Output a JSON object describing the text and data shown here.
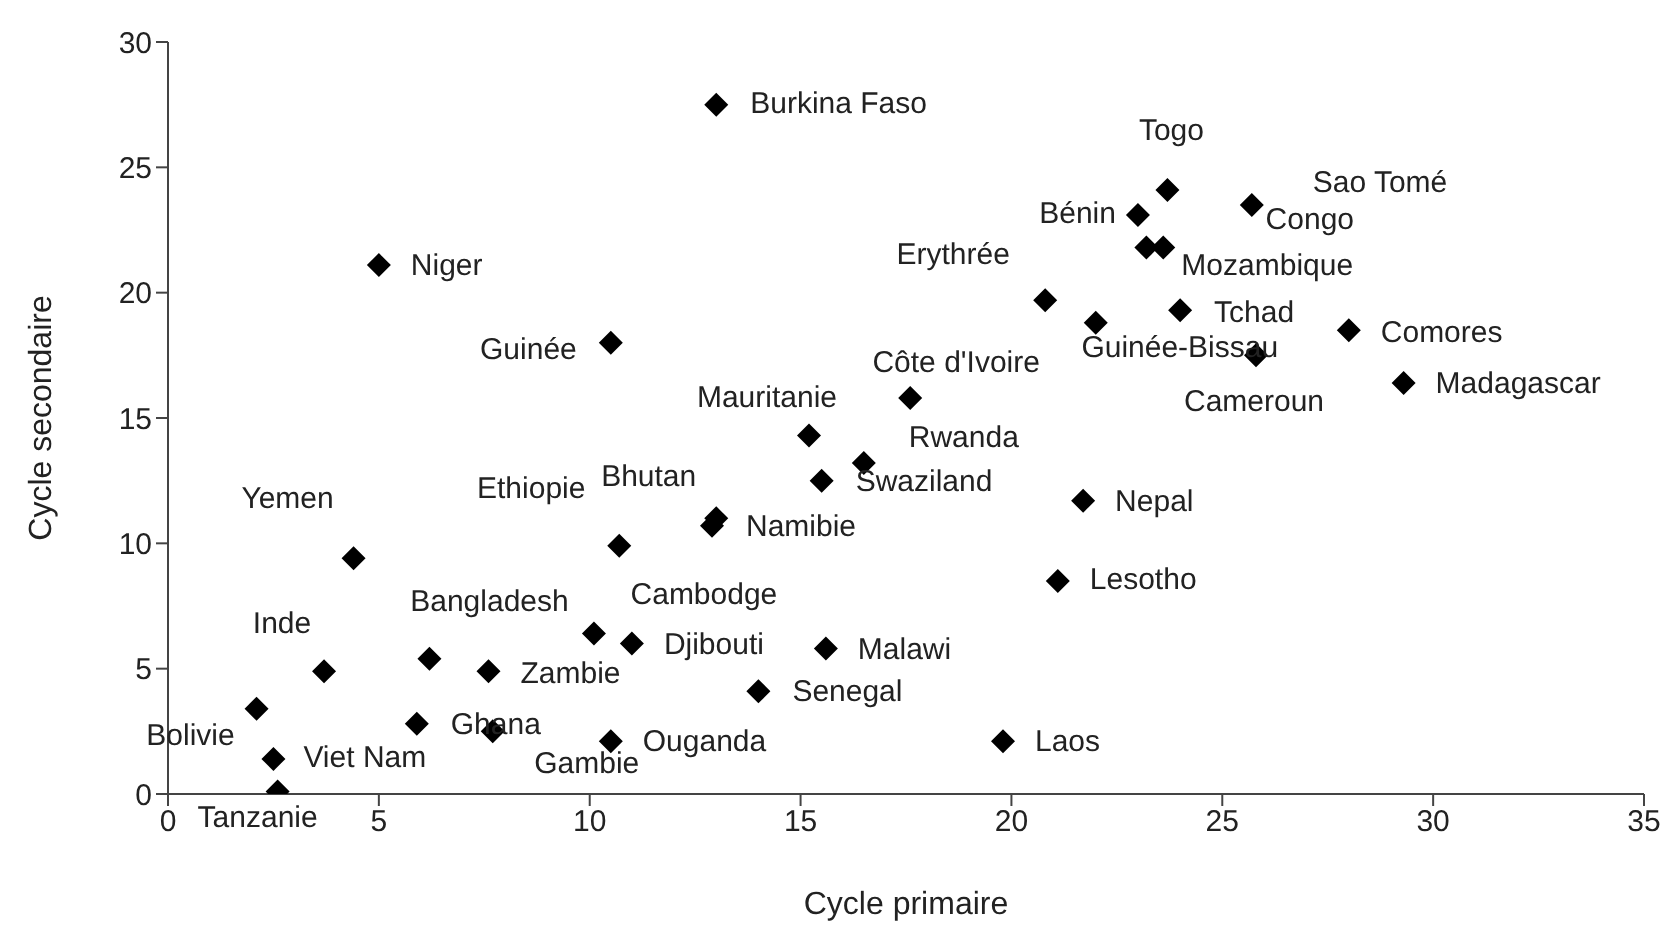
{
  "chart_data": {
    "type": "scatter",
    "xlabel": "Cycle primaire",
    "ylabel": "Cycle secondaire",
    "xlim": [
      0,
      35
    ],
    "ylim": [
      0,
      30
    ],
    "xticks": [
      0,
      5,
      10,
      15,
      20,
      25,
      30,
      35
    ],
    "yticks": [
      0,
      5,
      10,
      15,
      20,
      25,
      30
    ],
    "grid": false,
    "legend": false,
    "marker": "diamond",
    "series": [
      {
        "color": "#000000",
        "x": [
          13.0,
          5.0,
          10.5,
          4.4,
          3.7,
          6.2,
          7.6,
          2.1,
          2.5,
          2.6,
          5.9,
          7.7,
          10.5,
          10.1,
          11.0,
          10.7,
          13.0,
          12.9,
          15.2,
          15.5,
          16.5,
          17.6,
          20.8,
          23.0,
          23.7,
          23.2,
          25.7,
          23.6,
          22.0,
          24.0,
          25.8,
          28.0,
          29.3,
          21.7,
          21.1,
          15.6,
          14.0,
          19.8
        ],
        "values": [
          27.5,
          21.1,
          18.0,
          9.4,
          4.9,
          5.4,
          4.9,
          3.4,
          1.4,
          0.1,
          2.8,
          2.5,
          2.1,
          6.4,
          6.0,
          9.9,
          11.0,
          10.7,
          14.3,
          12.5,
          13.2,
          15.8,
          19.7,
          23.1,
          24.1,
          21.8,
          23.5,
          21.8,
          18.8,
          19.3,
          17.5,
          18.5,
          16.4,
          11.7,
          8.5,
          5.8,
          4.1,
          2.1
        ]
      }
    ],
    "annotations": [
      {
        "text": "Burkina Faso",
        "x": 13.0,
        "y": 27.5
      },
      {
        "text": "Niger",
        "x": 5.0,
        "y": 21.1
      },
      {
        "text": "Guinée",
        "x": 10.5,
        "y": 18.0
      },
      {
        "text": "Yemen",
        "x": 4.4,
        "y": 9.4
      },
      {
        "text": "Inde",
        "x": 3.7,
        "y": 4.9
      },
      {
        "text": "Bangladesh",
        "x": 6.2,
        "y": 5.4
      },
      {
        "text": "Zambie",
        "x": 7.6,
        "y": 4.9
      },
      {
        "text": "Bolivie",
        "x": 2.1,
        "y": 3.4
      },
      {
        "text": "Viet Nam",
        "x": 2.5,
        "y": 1.4
      },
      {
        "text": "Tanzanie",
        "x": 2.6,
        "y": 0.1
      },
      {
        "text": "Ghana",
        "x": 5.9,
        "y": 2.8
      },
      {
        "text": "Gambie",
        "x": 7.7,
        "y": 2.5
      },
      {
        "text": "Ouganda",
        "x": 10.5,
        "y": 2.1
      },
      {
        "text": "Cambodge",
        "x": 10.1,
        "y": 6.4
      },
      {
        "text": "Djibouti",
        "x": 11.0,
        "y": 6.0
      },
      {
        "text": "Ethiopie",
        "x": 10.7,
        "y": 9.9
      },
      {
        "text": "Bhutan",
        "x": 13.0,
        "y": 11.0
      },
      {
        "text": "Namibie",
        "x": 12.9,
        "y": 10.7
      },
      {
        "text": "Mauritanie",
        "x": 15.2,
        "y": 14.3
      },
      {
        "text": "Swaziland",
        "x": 15.5,
        "y": 12.5
      },
      {
        "text": "Rwanda",
        "x": 16.5,
        "y": 13.2
      },
      {
        "text": "Côte d'Ivoire",
        "x": 17.6,
        "y": 15.8
      },
      {
        "text": "Erythrée",
        "x": 20.8,
        "y": 19.7
      },
      {
        "text": "Bénin",
        "x": 23.0,
        "y": 23.1
      },
      {
        "text": "Togo",
        "x": 23.7,
        "y": 24.1
      },
      "Sao Tomé",
      {
        "text": "Congo",
        "x": 25.7,
        "y": 23.5
      },
      {
        "text": "Mozambique",
        "x": 23.6,
        "y": 21.8
      },
      {
        "text": "Guinée-Bissau",
        "x": 22.0,
        "y": 18.8
      },
      {
        "text": "Tchad",
        "x": 24.0,
        "y": 19.3
      },
      {
        "text": "Cameroun",
        "x": 25.8,
        "y": 17.5
      },
      {
        "text": "Comores",
        "x": 28.0,
        "y": 18.5
      },
      {
        "text": "Madagascar",
        "x": 29.3,
        "y": 16.4
      },
      {
        "text": "Nepal",
        "x": 21.7,
        "y": 11.7
      },
      {
        "text": "Lesotho",
        "x": 21.1,
        "y": 8.5
      },
      {
        "text": "Malawi",
        "x": 15.6,
        "y": 5.8
      },
      {
        "text": "Senegal",
        "x": 14.0,
        "y": 4.1
      },
      {
        "text": "Laos",
        "x": 19.8,
        "y": 2.1
      }
    ]
  }
}
